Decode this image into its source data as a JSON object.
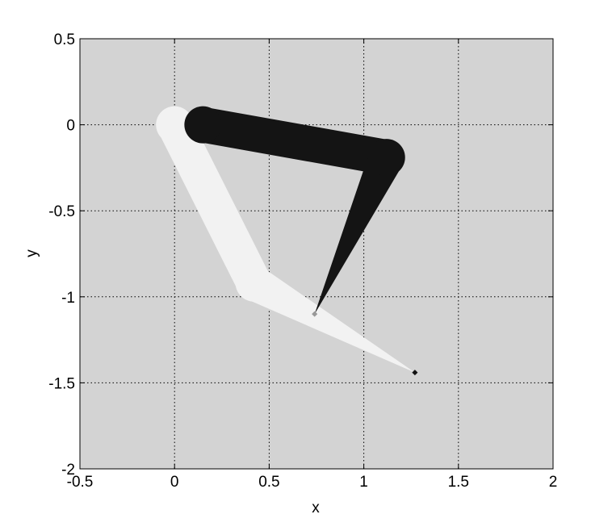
{
  "chart_data": {
    "type": "line",
    "xlabel": "x",
    "ylabel": "y",
    "xlim": [
      -0.5,
      2
    ],
    "ylim": [
      -2,
      0.5
    ],
    "x_ticks": [
      -0.5,
      0,
      0.5,
      1,
      1.5,
      2
    ],
    "x_tick_labels": [
      "-0.5",
      "0",
      "0.5",
      "1",
      "1.5",
      "2"
    ],
    "y_ticks": [
      -2,
      -1.5,
      -1,
      -0.5,
      0,
      0.5
    ],
    "y_tick_labels": [
      "-2",
      "-1.5",
      "-1",
      "-0.5",
      "0",
      "0.5"
    ],
    "grid": true,
    "grid_style": "dotted",
    "plot_background": "#d3d3d3",
    "series": [
      {
        "color": "#f2f2f2",
        "joints": [
          {
            "x": 0.0,
            "y": 0.0
          },
          {
            "x": 0.42,
            "y": -0.92
          }
        ],
        "tip": {
          "x": 1.27,
          "y": -1.44
        }
      },
      {
        "color": "#141414",
        "joints": [
          {
            "x": 0.15,
            "y": 0.0
          },
          {
            "x": 1.12,
            "y": -0.19
          }
        ],
        "tip": {
          "x": 0.74,
          "y": -1.1
        }
      }
    ]
  }
}
